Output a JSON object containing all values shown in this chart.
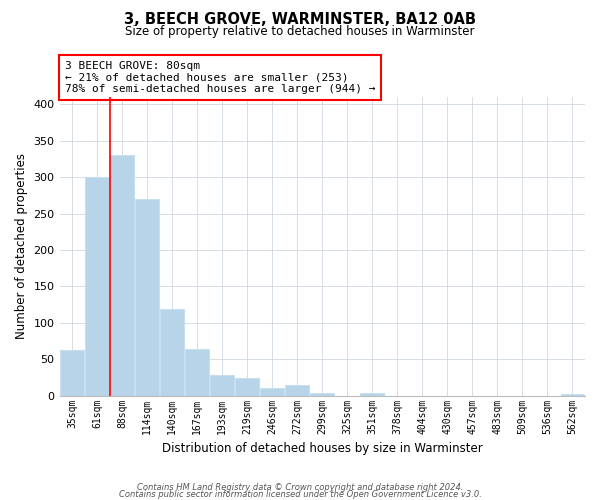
{
  "title": "3, BEECH GROVE, WARMINSTER, BA12 0AB",
  "subtitle": "Size of property relative to detached houses in Warminster",
  "xlabel": "Distribution of detached houses by size in Warminster",
  "ylabel": "Number of detached properties",
  "categories": [
    "35sqm",
    "61sqm",
    "88sqm",
    "114sqm",
    "140sqm",
    "167sqm",
    "193sqm",
    "219sqm",
    "246sqm",
    "272sqm",
    "299sqm",
    "325sqm",
    "351sqm",
    "378sqm",
    "404sqm",
    "430sqm",
    "457sqm",
    "483sqm",
    "509sqm",
    "536sqm",
    "562sqm"
  ],
  "values": [
    63,
    300,
    330,
    270,
    119,
    64,
    29,
    24,
    10,
    14,
    4,
    0,
    3,
    0,
    0,
    0,
    0,
    0,
    0,
    0,
    2
  ],
  "bar_color": "#b8d4e8",
  "bar_edge_color": "#c8dff0",
  "red_line_x": 1.5,
  "annotation_title": "3 BEECH GROVE: 80sqm",
  "annotation_line1": "← 21% of detached houses are smaller (253)",
  "annotation_line2": "78% of semi-detached houses are larger (944) →",
  "ylim": [
    0,
    410
  ],
  "yticks": [
    0,
    50,
    100,
    150,
    200,
    250,
    300,
    350,
    400
  ],
  "background_color": "#ffffff",
  "grid_color": "#d0d8e0",
  "footer1": "Contains HM Land Registry data © Crown copyright and database right 2024.",
  "footer2": "Contains public sector information licensed under the Open Government Licence v3.0."
}
